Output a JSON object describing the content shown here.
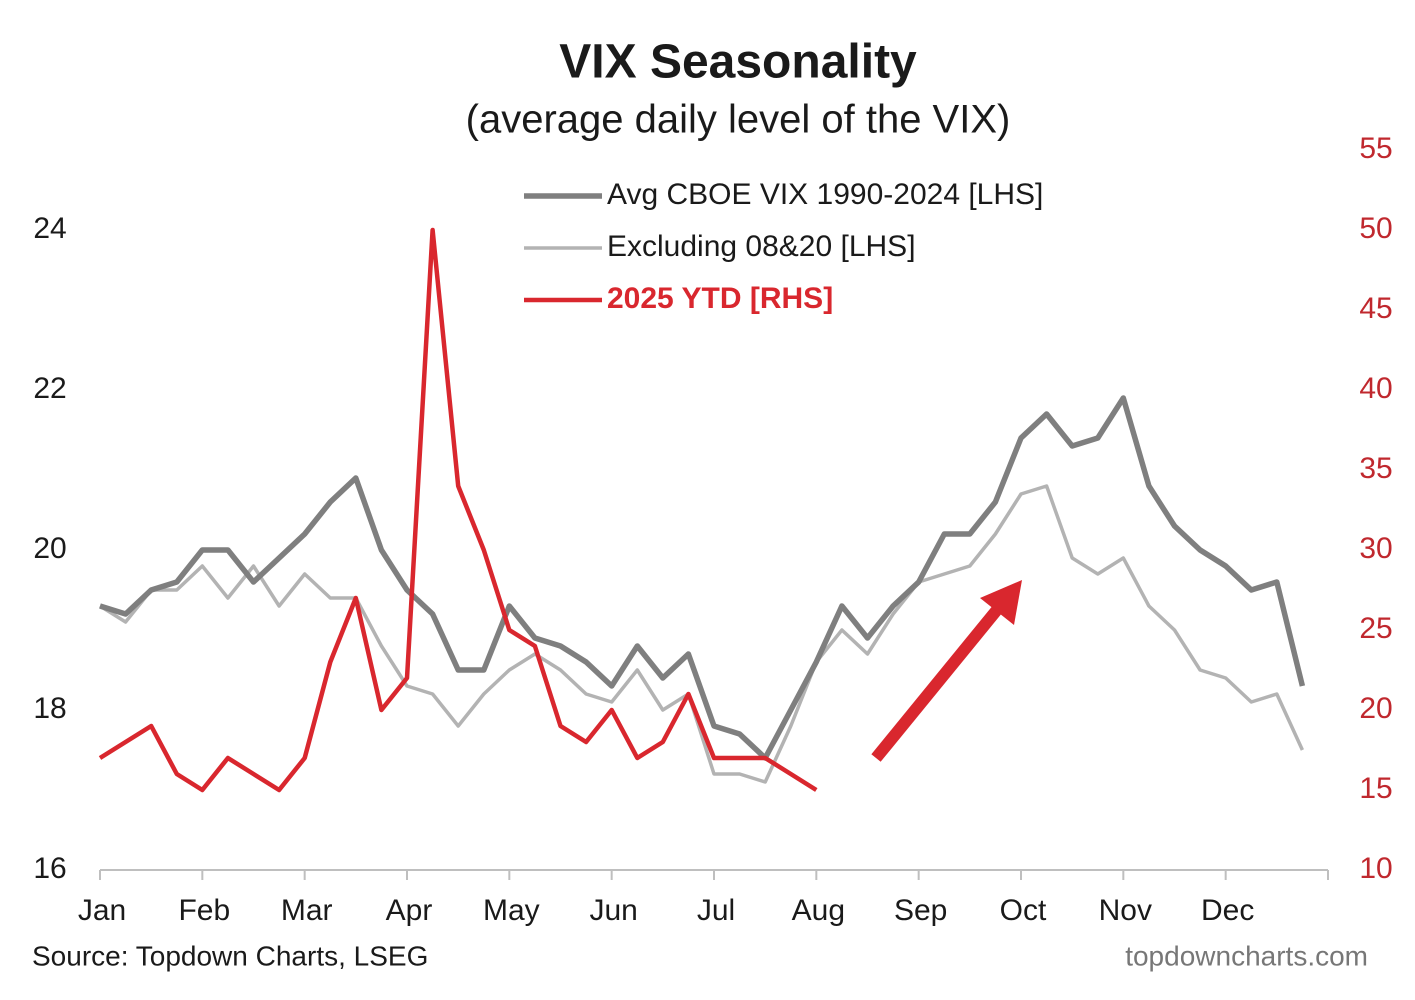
{
  "chart_data": {
    "type": "line",
    "title": "VIX Seasonality",
    "subtitle": "(average daily level of the VIX)",
    "source": "Source: Topdown Charts, LSEG",
    "watermark": "topdowncharts.com",
    "categories": [
      "Jan",
      null,
      null,
      null,
      "Feb",
      null,
      null,
      null,
      "Mar",
      null,
      null,
      null,
      "Apr",
      null,
      null,
      null,
      "May",
      null,
      null,
      null,
      "Jun",
      null,
      null,
      null,
      "Jul",
      null,
      null,
      null,
      "Aug",
      null,
      null,
      null,
      "Sep",
      null,
      null,
      null,
      "Oct",
      null,
      null,
      null,
      "Nov",
      null,
      null,
      null,
      "Dec",
      null,
      null,
      null
    ],
    "ylim": [
      16,
      25
    ],
    "yticks": [
      16,
      18,
      20,
      22,
      24
    ],
    "y2lim": [
      10,
      55
    ],
    "y2ticks": [
      10,
      15,
      20,
      25,
      30,
      35,
      40,
      45,
      50,
      55
    ],
    "grid": false,
    "legend": "top",
    "series": [
      {
        "name": "Avg CBOE VIX 1990-2024 [LHS]",
        "color": "#7f7f7f",
        "values": [
          19.3,
          19.2,
          19.5,
          19.6,
          20.0,
          20.0,
          19.6,
          19.9,
          20.2,
          20.6,
          20.9,
          20.0,
          19.5,
          19.2,
          18.5,
          18.5,
          19.3,
          18.9,
          18.8,
          18.6,
          18.3,
          18.8,
          18.4,
          18.7,
          17.8,
          17.7,
          17.4,
          18.0,
          18.6,
          19.3,
          18.9,
          19.3,
          19.6,
          20.2,
          20.2,
          20.6,
          21.4,
          21.7,
          21.3,
          21.4,
          21.9,
          20.8,
          20.3,
          20.0,
          19.8,
          19.5,
          19.6,
          18.3
        ]
      },
      {
        "name": "Excluding 08&20 [LHS]",
        "color": "#b3b3b3",
        "values": [
          19.3,
          19.1,
          19.5,
          19.5,
          19.8,
          19.4,
          19.8,
          19.3,
          19.7,
          19.4,
          19.4,
          18.8,
          18.3,
          18.2,
          17.8,
          18.2,
          18.5,
          18.7,
          18.5,
          18.2,
          18.1,
          18.5,
          18.0,
          18.2,
          17.2,
          17.2,
          17.1,
          17.8,
          18.6,
          19.0,
          18.7,
          19.2,
          19.6,
          19.7,
          19.8,
          20.2,
          20.7,
          20.8,
          19.9,
          19.7,
          19.9,
          19.3,
          19.0,
          18.5,
          18.4,
          18.1,
          18.2,
          17.5
        ]
      },
      {
        "name": "2025 YTD [RHS]",
        "color": "#d9272e",
        "axis": "y2",
        "values": [
          17,
          18,
          19,
          16,
          15,
          17,
          16,
          15,
          17,
          23,
          27,
          20,
          22,
          50,
          34,
          30,
          25,
          24,
          19,
          18,
          20,
          17,
          18,
          21,
          17,
          17,
          17,
          16,
          15,
          null,
          null,
          null,
          null,
          null,
          null,
          null,
          null,
          null,
          null,
          null,
          null,
          null,
          null,
          null,
          null,
          null,
          null,
          null
        ]
      }
    ]
  }
}
